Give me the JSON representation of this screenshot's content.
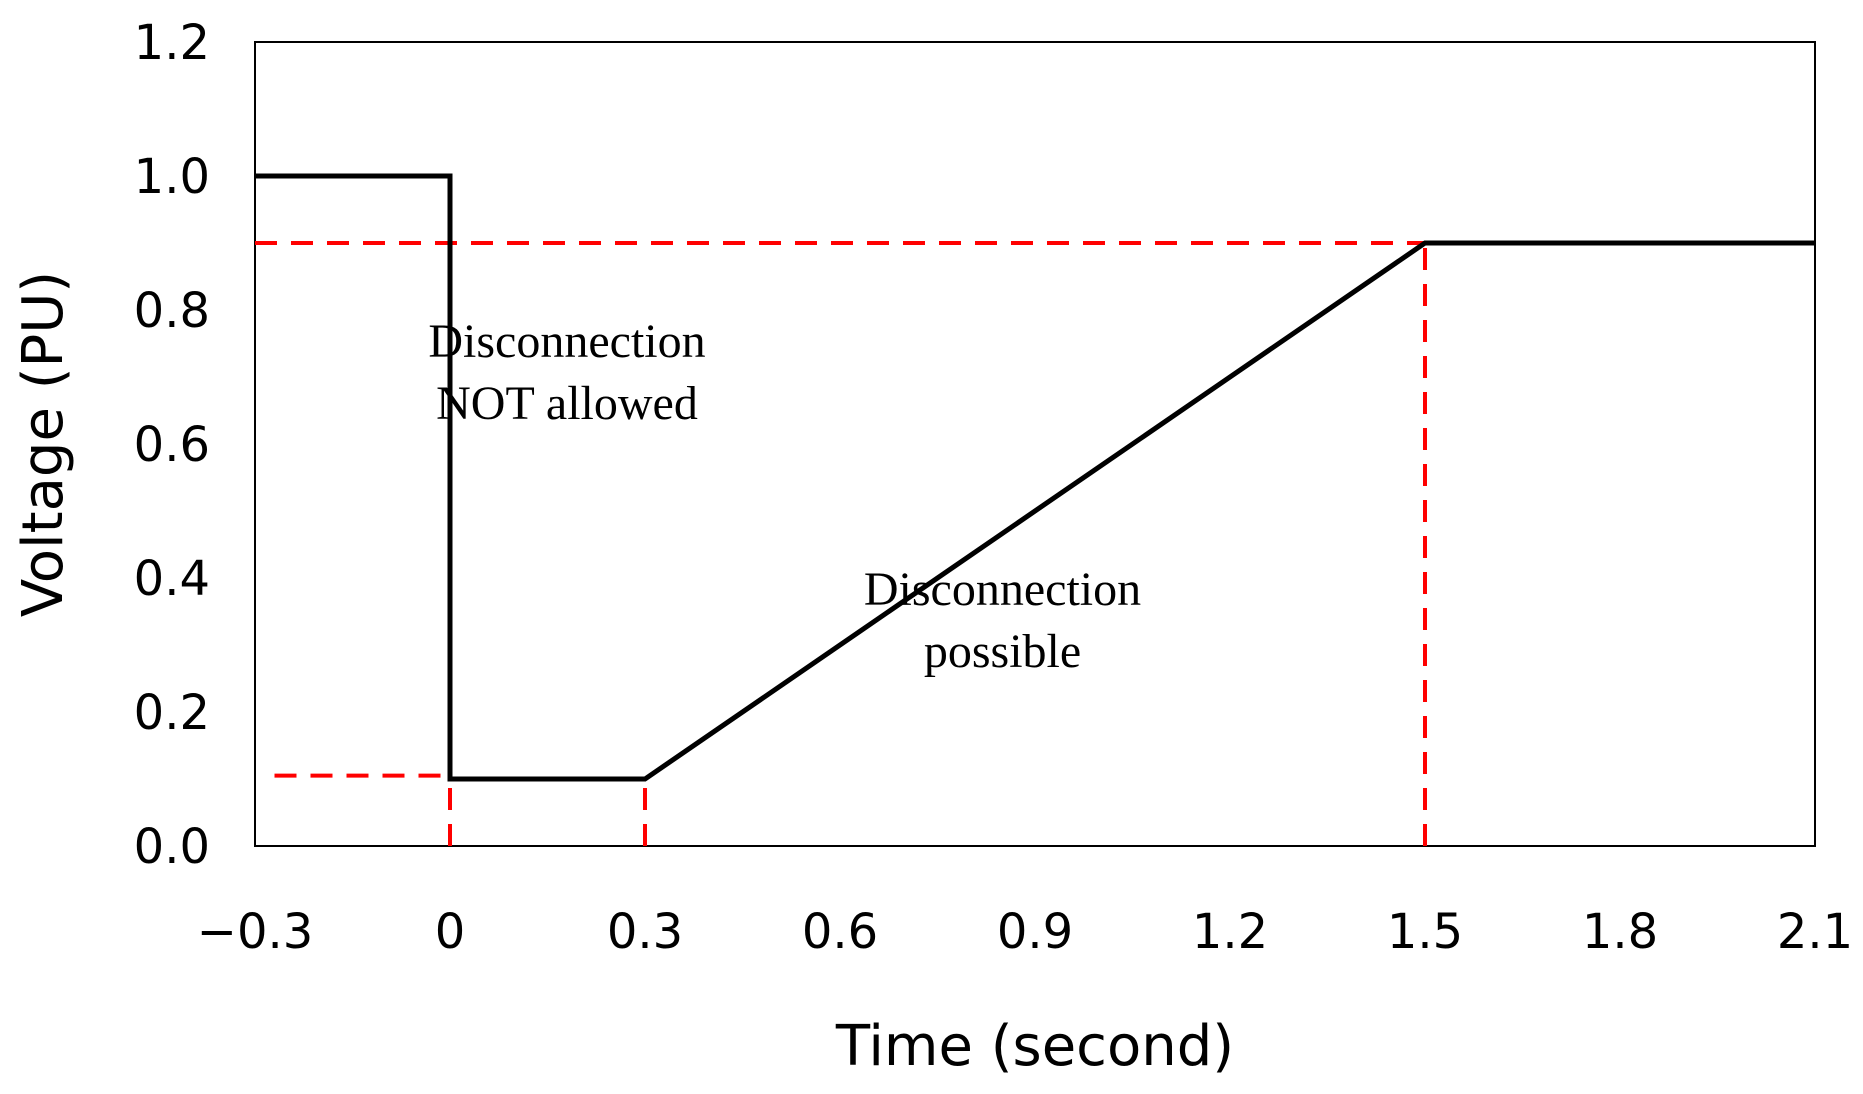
{
  "chart_data": {
    "type": "line",
    "xlabel": "Time (second)",
    "ylabel": "Voltage (PU)",
    "xlim": [
      -0.3,
      2.1
    ],
    "ylim": [
      0,
      1.2
    ],
    "x_ticks": [
      "−0.3",
      "0",
      "0.3",
      "0.6",
      "0.9",
      "1.2",
      "1.5",
      "1.8",
      "2.1"
    ],
    "y_ticks": [
      "0.0",
      "0.2",
      "0.4",
      "0.6",
      "0.8",
      "1.0",
      "1.2"
    ],
    "grid": false,
    "series": [
      {
        "color": "#000000",
        "style": "solid",
        "x": [
          -0.3,
          0,
          0,
          0.3,
          1.5,
          1.8,
          2.1
        ],
        "y": [
          1.0,
          1.0,
          0.1,
          0.1,
          0.9,
          0.9,
          0.9
        ]
      }
    ],
    "reference_lines": [
      {
        "color": "#ff0000",
        "style": "dashed",
        "x": [
          -0.3,
          1.5
        ],
        "y": [
          0.9,
          0.9
        ]
      },
      {
        "color": "#ff0000",
        "style": "dashed",
        "x": [
          -0.27,
          0
        ],
        "y": [
          0.105,
          0.105
        ]
      },
      {
        "color": "#ff0000",
        "style": "dashed",
        "x": [
          0,
          0
        ],
        "y": [
          0,
          0.105
        ]
      },
      {
        "color": "#ff0000",
        "style": "dashed",
        "x": [
          0.3,
          0.3
        ],
        "y": [
          0,
          0.105
        ]
      },
      {
        "color": "#ff0000",
        "style": "dashed",
        "x": [
          1.5,
          1.5
        ],
        "y": [
          0,
          0.9
        ]
      }
    ],
    "annotations": [
      {
        "lines": [
          "Disconnection",
          "NOT allowed"
        ],
        "x": 0.18,
        "y": 0.73
      },
      {
        "lines": [
          "Disconnection",
          "possible"
        ],
        "x": 0.85,
        "y": 0.36
      }
    ]
  }
}
